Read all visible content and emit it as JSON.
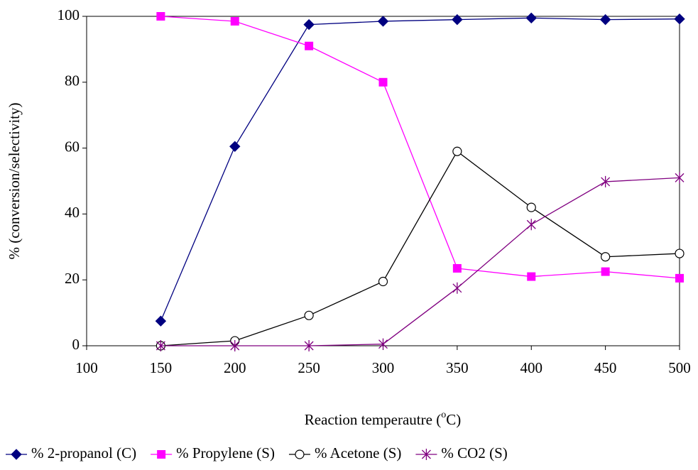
{
  "chart_data": {
    "type": "line",
    "xlabel": {
      "before": "Reaction temperautre (",
      "superscript": "o",
      "after": "C)"
    },
    "ylabel": "% (conversion/selectivity)",
    "x": [
      150,
      200,
      250,
      300,
      350,
      400,
      450,
      500
    ],
    "series": [
      {
        "name": "% 2-propanol (C)",
        "color": "#000080",
        "marker": "diamond",
        "values": [
          7.5,
          60.5,
          97.5,
          98.5,
          99,
          99.5,
          99,
          99.2
        ]
      },
      {
        "name": "% Propylene (S)",
        "color": "#ff00ff",
        "marker": "square",
        "values": [
          100,
          98.5,
          91,
          80,
          23.5,
          21,
          22.5,
          20.5
        ]
      },
      {
        "name": "% Acetone (S)",
        "color": "#000000",
        "marker": "circle",
        "values": [
          0,
          1.5,
          9.2,
          19.5,
          59,
          42,
          27,
          28
        ]
      },
      {
        "name": "% CO2 (S)",
        "color": "#800080",
        "marker": "star",
        "values": [
          0,
          0,
          0,
          0.5,
          17.5,
          36.8,
          49.8,
          51
        ]
      }
    ],
    "xlim": [
      100,
      500
    ],
    "xticks": [
      100,
      150,
      200,
      250,
      300,
      350,
      400,
      450,
      500
    ],
    "ylim": [
      0,
      100
    ],
    "yticks": [
      0,
      20,
      40,
      60,
      80,
      100
    ],
    "grid": false,
    "legend": "bottom"
  }
}
